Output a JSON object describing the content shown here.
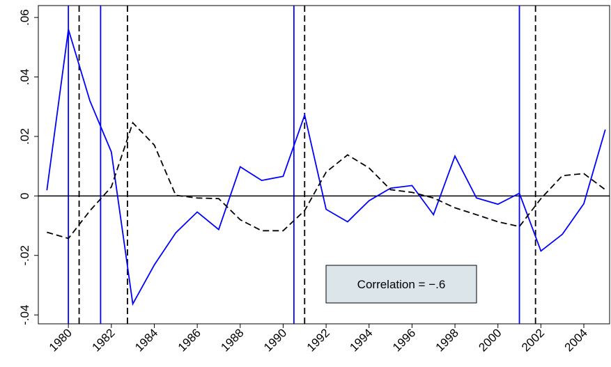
{
  "chart_data": {
    "type": "line",
    "x": [
      1979,
      1980,
      1981,
      1982,
      1983,
      1984,
      1985,
      1986,
      1987,
      1988,
      1989,
      1990,
      1991,
      1992,
      1993,
      1994,
      1995,
      1996,
      1997,
      1998,
      1999,
      2000,
      2001,
      2002,
      2003,
      2004,
      2005
    ],
    "series": [
      {
        "color": "#0000ff",
        "dash": false,
        "values": [
          0.0019,
          0.056,
          0.032,
          0.0148,
          -0.0363,
          -0.0232,
          -0.0124,
          -0.0054,
          -0.0113,
          0.0098,
          0.0052,
          0.0066,
          0.0272,
          -0.0045,
          -0.0087,
          -0.0016,
          0.0026,
          0.0035,
          -0.0063,
          0.0134,
          -0.0007,
          -0.0028,
          0.0009,
          -0.0185,
          -0.0129,
          -0.0026,
          0.0223
        ]
      },
      {
        "color": "#000000",
        "dash": true,
        "values": [
          -0.0122,
          -0.0143,
          -0.005,
          0.003,
          0.0246,
          0.0171,
          0.0002,
          -0.0007,
          -0.0009,
          -0.008,
          -0.0117,
          -0.0117,
          -0.0049,
          0.008,
          0.0138,
          0.0094,
          0.0021,
          0.0012,
          -0.0007,
          -0.004,
          -0.0063,
          -0.0087,
          -0.0103,
          -0.0009,
          0.0068,
          0.0075,
          0.0021
        ]
      }
    ],
    "xlim": [
      1978.6,
      2005.2
    ],
    "xticks": [
      1980,
      1982,
      1984,
      1986,
      1988,
      1990,
      1992,
      1994,
      1996,
      1998,
      2000,
      2002,
      2004
    ],
    "ylim": [
      -0.043,
      0.064
    ],
    "yticks": [
      {
        "value": -0.04,
        "label": "-.04"
      },
      {
        "value": -0.02,
        "label": "-.02"
      },
      0,
      {
        "value": 0.02,
        "label": ".02"
      },
      {
        "value": 0.04,
        "label": ".04"
      },
      {
        "value": 0.06,
        "label": ".06"
      }
    ],
    "hline": 0,
    "vlines": [
      {
        "x": 1980,
        "color": "#0000ff",
        "dash": false
      },
      {
        "x": 1981.5,
        "color": "#0000ff",
        "dash": false
      },
      {
        "x": 1990.5,
        "color": "#0000ff",
        "dash": false
      },
      {
        "x": 2001,
        "color": "#0000ff",
        "dash": false
      },
      {
        "x": 1980.5,
        "color": "#000000",
        "dash": true
      },
      {
        "x": 1982.75,
        "color": "#000000",
        "dash": true
      },
      {
        "x": 1991,
        "color": "#000000",
        "dash": true
      },
      {
        "x": 2001.75,
        "color": "#000000",
        "dash": true
      }
    ],
    "annotation": "Correlation = −.6",
    "grid": false
  }
}
